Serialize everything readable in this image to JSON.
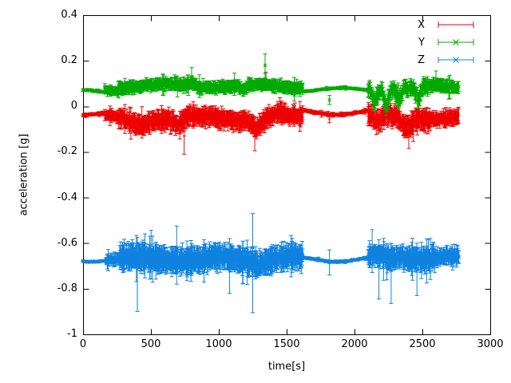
{
  "chart_data": {
    "type": "scatter",
    "style": "points-with-yerrorbars",
    "title": "",
    "xlabel": "time[s]",
    "ylabel": "acceleration [g]",
    "xlim": [
      0,
      3000
    ],
    "ylim": [
      -1,
      0.4
    ],
    "grid": false,
    "xtick_labels": [
      "0",
      "500",
      "1000",
      "1500",
      "2000",
      "2500",
      "3000"
    ],
    "ytick_labels": [
      "0.4",
      "0.2",
      "0",
      "-0.2",
      "-0.4",
      "-0.6",
      "-0.8",
      "-1"
    ],
    "legend": {
      "position": "top-right-inside",
      "entries": [
        {
          "label": "X",
          "color": "#ee0000",
          "marker": "plus"
        },
        {
          "label": "Y",
          "color": "#00aa00",
          "marker": "cross"
        },
        {
          "label": "Z",
          "color": "#0f82e0",
          "marker": "asterisk"
        }
      ]
    },
    "time_range_s": [
      0,
      2770
    ],
    "series": [
      {
        "name": "X",
        "color": "#ee0000",
        "marker": "plus",
        "description": "flat ~-0.045g for 0-160s, noisy ~-0.05g with error bars to -0.2g for 260-1620s, quiet ~-0.025g for 1620-2100s, noisy again 2100-2770s",
        "segments": [
          {
            "t0": 0,
            "t1": 160,
            "dt": 4,
            "mean": -0.045,
            "jitter": 0.004,
            "err": 0.005
          },
          {
            "t0": 160,
            "t1": 260,
            "dt": 3,
            "mean": -0.05,
            "jitter": 0.013,
            "err": 0.018
          },
          {
            "t0": 260,
            "t1": 1620,
            "dt": 3,
            "mean": -0.052,
            "jitter": 0.02,
            "err": 0.032
          },
          {
            "t0": 1620,
            "t1": 2100,
            "dt": 5,
            "mean": -0.025,
            "jitter": 0.004,
            "err": 0.006
          },
          {
            "t0": 2100,
            "t1": 2560,
            "dt": 3,
            "mean": -0.05,
            "jitter": 0.026,
            "err": 0.034
          },
          {
            "t0": 2560,
            "t1": 2770,
            "dt": 3,
            "mean": -0.045,
            "jitter": 0.018,
            "err": 0.024
          }
        ],
        "wobble": {
          "amp": 0.012,
          "period": 700,
          "phase": 0.5
        },
        "events": [
          {
            "t": 420,
            "w": 120,
            "dy": -0.02
          },
          {
            "t": 700,
            "w": 90,
            "dy": -0.035
          },
          {
            "t": 1280,
            "w": 70,
            "dy": -0.045
          },
          {
            "t": 1450,
            "w": 60,
            "dy": 0.02
          },
          {
            "t": 2180,
            "w": 50,
            "dy": -0.03
          },
          {
            "t": 2380,
            "w": 70,
            "dy": -0.05
          }
        ],
        "outliers": [
          {
            "t": 745,
            "y": -0.13,
            "lo": -0.21,
            "hi": -0.06
          },
          {
            "t": 1265,
            "y": -0.12,
            "lo": -0.195,
            "hi": -0.05
          },
          {
            "t": 1341,
            "y": 0.12,
            "lo": 0.1,
            "hi": 0.145
          },
          {
            "t": 1815,
            "y": -0.055,
            "lo": -0.072,
            "hi": -0.038
          },
          {
            "t": 2400,
            "y": -0.11,
            "lo": -0.185,
            "hi": -0.04
          }
        ]
      },
      {
        "name": "Y",
        "color": "#00aa00",
        "marker": "cross",
        "description": "flat ~0.065g for 0-160s, noisy ~0.09g for 260-1620s with spike to 0.23g near 1341s, quiet ~0.073g for 1620-2100s, noisy with downward dips to ~0g for 2100-2770s",
        "segments": [
          {
            "t0": 0,
            "t1": 160,
            "dt": 4,
            "mean": 0.065,
            "jitter": 0.004,
            "err": 0.004
          },
          {
            "t0": 160,
            "t1": 260,
            "dt": 3,
            "mean": 0.075,
            "jitter": 0.012,
            "err": 0.014
          },
          {
            "t0": 260,
            "t1": 1620,
            "dt": 3,
            "mean": 0.09,
            "jitter": 0.015,
            "err": 0.02
          },
          {
            "t0": 1620,
            "t1": 2100,
            "dt": 5,
            "mean": 0.073,
            "jitter": 0.003,
            "err": 0.004
          },
          {
            "t0": 2100,
            "t1": 2560,
            "dt": 3,
            "mean": 0.08,
            "jitter": 0.02,
            "err": 0.025
          },
          {
            "t0": 2560,
            "t1": 2770,
            "dt": 3,
            "mean": 0.085,
            "jitter": 0.015,
            "err": 0.02
          }
        ],
        "wobble": {
          "amp": 0.008,
          "period": 650,
          "phase": 2.0
        },
        "events": [
          {
            "t": 800,
            "w": 50,
            "dy": 0.015
          },
          {
            "t": 1180,
            "w": 40,
            "dy": -0.025
          },
          {
            "t": 2150,
            "w": 35,
            "dy": -0.06
          },
          {
            "t": 2235,
            "w": 35,
            "dy": -0.075
          },
          {
            "t": 2330,
            "w": 30,
            "dy": -0.05
          },
          {
            "t": 2470,
            "w": 35,
            "dy": -0.06
          }
        ],
        "outliers": [
          {
            "t": 800,
            "y": 0.13,
            "lo": 0.1,
            "hi": 0.17
          },
          {
            "t": 1341,
            "y": 0.18,
            "lo": 0.125,
            "hi": 0.23
          },
          {
            "t": 1348,
            "y": 0.115,
            "lo": 0.085,
            "hi": 0.15
          },
          {
            "t": 1815,
            "y": 0.028,
            "lo": 0.008,
            "hi": 0.048
          },
          {
            "t": 2600,
            "y": 0.12,
            "lo": 0.09,
            "hi": 0.155
          }
        ]
      },
      {
        "name": "Z",
        "color": "#0f82e0",
        "marker": "asterisk",
        "description": "flat ~-0.672g for 0-170s, noisy ~-0.67g with bars from -0.9 to -0.47g for 260-1620s, quiet ~-0.672g for 1620-2100s, noisy -0.66g for 2100-2770s",
        "segments": [
          {
            "t0": 0,
            "t1": 170,
            "dt": 4,
            "mean": -0.672,
            "jitter": 0.003,
            "err": 0.003
          },
          {
            "t0": 170,
            "t1": 270,
            "dt": 3,
            "mean": -0.672,
            "jitter": 0.012,
            "err": 0.018
          },
          {
            "t0": 270,
            "t1": 1620,
            "dt": 3,
            "mean": -0.668,
            "jitter": 0.025,
            "err": 0.042
          },
          {
            "t0": 1620,
            "t1": 2100,
            "dt": 5,
            "mean": -0.672,
            "jitter": 0.004,
            "err": 0.004
          },
          {
            "t0": 2100,
            "t1": 2600,
            "dt": 3,
            "mean": -0.66,
            "jitter": 0.025,
            "err": 0.038
          },
          {
            "t0": 2600,
            "t1": 2770,
            "dt": 3,
            "mean": -0.665,
            "jitter": 0.018,
            "err": 0.028
          }
        ],
        "wobble": {
          "amp": 0.01,
          "period": 600,
          "phase": 4.0
        },
        "events": [
          {
            "t": 850,
            "w": 120,
            "dy": -0.01
          },
          {
            "t": 1300,
            "w": 80,
            "dy": -0.02
          },
          {
            "t": 2250,
            "w": 60,
            "dy": -0.02
          }
        ],
        "outliers": [
          {
            "t": 400,
            "y": -0.7,
            "lo": -0.9,
            "hi": -0.575
          },
          {
            "t": 690,
            "y": -0.62,
            "lo": -0.78,
            "hi": -0.525
          },
          {
            "t": 1080,
            "y": -0.7,
            "lo": -0.82,
            "hi": -0.58
          },
          {
            "t": 1250,
            "y": -0.62,
            "lo": -0.905,
            "hi": -0.47
          },
          {
            "t": 1815,
            "y": -0.685,
            "lo": -0.74,
            "hi": -0.63
          },
          {
            "t": 2180,
            "y": -0.7,
            "lo": -0.845,
            "hi": -0.585
          },
          {
            "t": 2270,
            "y": -0.72,
            "lo": -0.865,
            "hi": -0.6
          },
          {
            "t": 2460,
            "y": -0.71,
            "lo": -0.83,
            "hi": -0.6
          }
        ]
      }
    ]
  }
}
